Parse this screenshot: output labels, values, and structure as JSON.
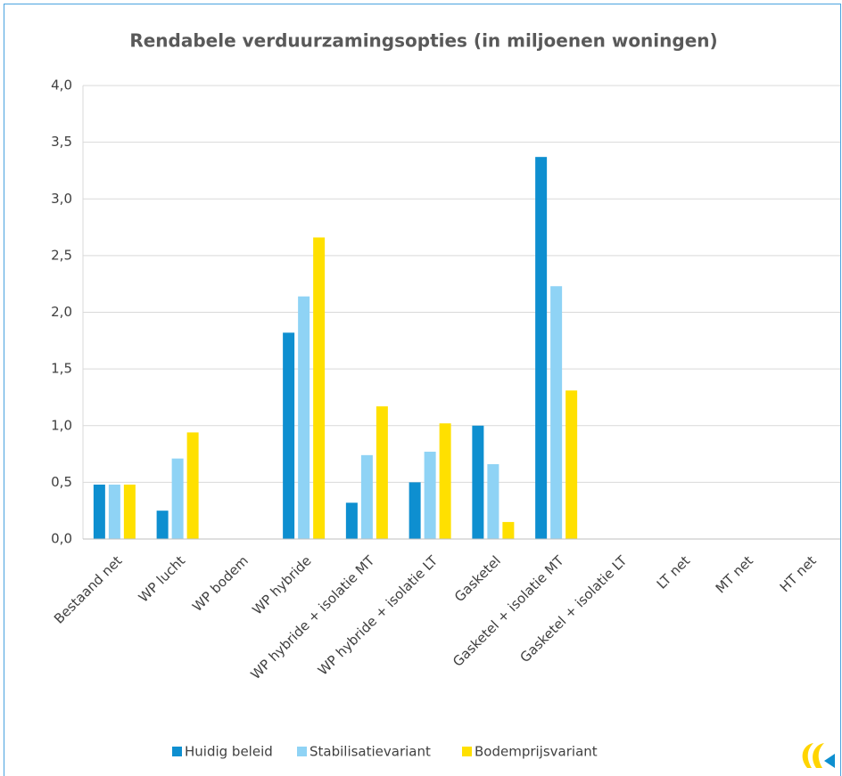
{
  "chart_data": {
    "type": "bar",
    "title": "Rendabele verduurzamingsopties (in miljoenen woningen)",
    "categories": [
      "Bestaand net",
      "WP lucht",
      "WP bodem",
      "WP hybride",
      "WP hybride + isolatie MT",
      "WP hybride + isolatie LT",
      "Gasketel",
      "Gasketel + isolatie MT",
      "Gasketel + isolatie LT",
      "LT net",
      "MT net",
      "HT net"
    ],
    "series": [
      {
        "name": "Huidig beleid",
        "color": "#0e8fd0",
        "values": [
          0.48,
          0.25,
          0,
          1.82,
          0.32,
          0.5,
          1.0,
          3.37,
          0,
          0,
          0,
          0
        ]
      },
      {
        "name": "Stabilisatievariant",
        "color": "#8fd3f5",
        "values": [
          0.48,
          0.71,
          0,
          2.14,
          0.74,
          0.77,
          0.66,
          2.23,
          0,
          0,
          0,
          0
        ]
      },
      {
        "name": "Bodemprijsvariant",
        "color": "#ffe000",
        "values": [
          0.48,
          0.94,
          0,
          2.66,
          1.17,
          1.02,
          0.15,
          1.31,
          0,
          0,
          0,
          0
        ]
      }
    ],
    "ylim": [
      0,
      4
    ],
    "yticks": [
      {
        "value": 0,
        "label": "0,0"
      },
      {
        "value": 0.5,
        "label": "0,5"
      },
      {
        "value": 1,
        "label": "1,0"
      },
      {
        "value": 1.5,
        "label": "1,5"
      },
      {
        "value": 2,
        "label": "2,0"
      },
      {
        "value": 2.5,
        "label": "2,5"
      },
      {
        "value": 3,
        "label": "3,0"
      },
      {
        "value": 3.5,
        "label": "3,5"
      },
      {
        "value": 4,
        "label": "4,0"
      }
    ],
    "grid": true
  }
}
